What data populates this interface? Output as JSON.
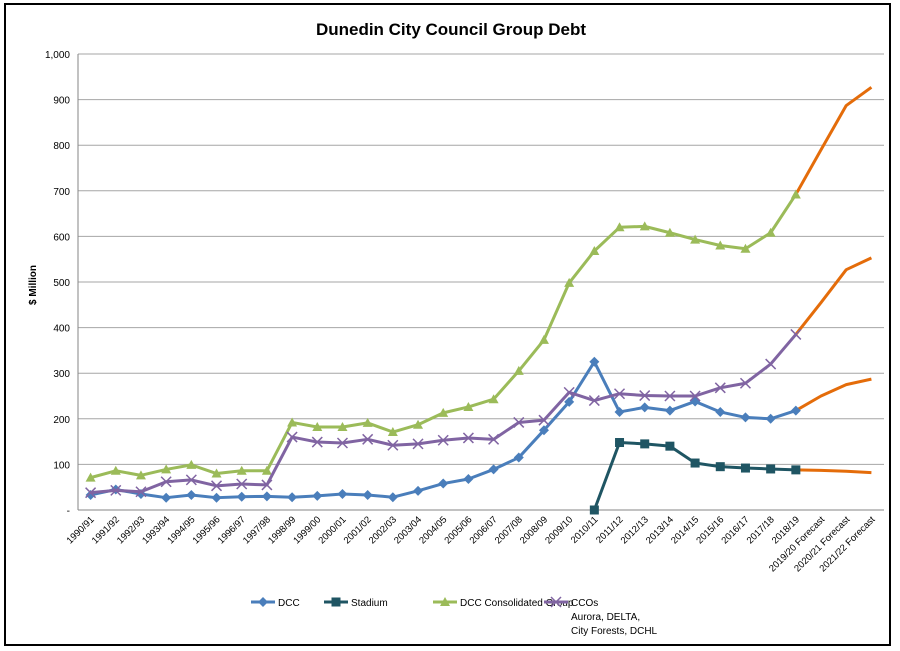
{
  "chart_data": {
    "type": "line",
    "title": "Dunedin City Council Group Debt",
    "xlabel": "",
    "ylabel": "$ Million",
    "ylim": [
      0,
      1000
    ],
    "yticks": [
      0,
      100,
      200,
      300,
      400,
      500,
      600,
      700,
      800,
      900,
      1000
    ],
    "ytick_labels": [
      "-",
      "100",
      "200",
      "300",
      "400",
      "500",
      "600",
      "700",
      "800",
      "900",
      "1,000"
    ],
    "grid": true,
    "legend_position": "bottom",
    "categories": [
      "1990/91",
      "1991/92",
      "1992/93",
      "1993/94",
      "1994/95",
      "1995/96",
      "1996/97",
      "1997/98",
      "1998/99",
      "1999/00",
      "2000/01",
      "2001/02",
      "2002/03",
      "2003/04",
      "2004/05",
      "2005/06",
      "2006/07",
      "2007/08",
      "2008/09",
      "2009/10",
      "2010/11",
      "2011/12",
      "2012/13",
      "2013/14",
      "2014/15",
      "2015/16",
      "2016/17",
      "2017/18",
      "2018/19",
      "2019/20 Forecast",
      "2020/21 Forecast",
      "2021/22 Forecast"
    ],
    "forecast_color": "#e46c0a",
    "series": [
      {
        "name": "DCC",
        "color": "#4a7ebb",
        "marker": "diamond",
        "values": [
          33,
          45,
          35,
          27,
          33,
          27,
          29,
          30,
          28,
          31,
          35,
          33,
          28,
          42,
          58,
          68,
          89,
          115,
          175,
          237,
          325,
          215,
          225,
          218,
          238,
          215,
          203,
          200,
          218,
          null,
          null,
          null
        ],
        "forecast": [
          218,
          250,
          275,
          287
        ]
      },
      {
        "name": "Stadium",
        "color": "#1f5563",
        "marker": "square",
        "values": [
          null,
          null,
          null,
          null,
          null,
          null,
          null,
          null,
          null,
          null,
          null,
          null,
          null,
          null,
          null,
          null,
          null,
          null,
          null,
          null,
          0,
          148,
          145,
          140,
          103,
          95,
          92,
          90,
          88,
          null,
          null,
          null
        ],
        "forecast": [
          88,
          87,
          85,
          82
        ]
      },
      {
        "name": "DCC Consolidated Group",
        "color": "#9bbb59",
        "marker": "triangle",
        "values": [
          71,
          86,
          76,
          89,
          99,
          80,
          86,
          86,
          192,
          182,
          182,
          191,
          171,
          187,
          213,
          226,
          243,
          305,
          373,
          498,
          568,
          620,
          622,
          608,
          593,
          580,
          573,
          608,
          692,
          null,
          null,
          null
        ],
        "forecast": [
          692,
          790,
          887,
          927
        ]
      },
      {
        "name": "CCOs",
        "name_lines": [
          "CCOs",
          "Aurora, DELTA,",
          "City Forests, DCHL"
        ],
        "color": "#8064a2",
        "marker": "x",
        "values": [
          38,
          43,
          40,
          62,
          66,
          53,
          57,
          55,
          160,
          149,
          147,
          155,
          142,
          145,
          153,
          158,
          155,
          192,
          197,
          258,
          240,
          255,
          251,
          250,
          250,
          268,
          278,
          320,
          385,
          null,
          null,
          null
        ],
        "forecast": [
          385,
          455,
          527,
          553
        ]
      }
    ]
  }
}
